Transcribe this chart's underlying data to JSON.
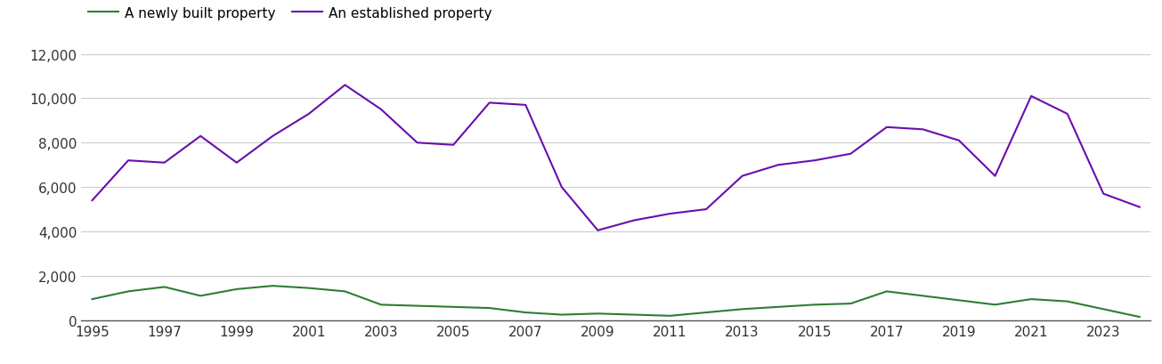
{
  "years": [
    1995,
    1996,
    1997,
    1998,
    1999,
    2000,
    2001,
    2002,
    2003,
    2004,
    2005,
    2006,
    2007,
    2008,
    2009,
    2010,
    2011,
    2012,
    2013,
    2014,
    2015,
    2016,
    2017,
    2018,
    2019,
    2020,
    2021,
    2022,
    2023,
    2024
  ],
  "newly_built": [
    950,
    1300,
    1500,
    1100,
    1400,
    1550,
    1450,
    1300,
    700,
    650,
    600,
    550,
    350,
    250,
    300,
    250,
    200,
    350,
    500,
    600,
    700,
    750,
    1300,
    1100,
    900,
    700,
    950,
    850,
    500,
    150
  ],
  "established": [
    5400,
    7200,
    7100,
    8300,
    7100,
    8300,
    9300,
    10600,
    9500,
    8000,
    7900,
    9800,
    9700,
    6000,
    4050,
    4500,
    4800,
    5000,
    6500,
    7000,
    7200,
    7500,
    8700,
    8600,
    8100,
    6500,
    10100,
    9300,
    5700,
    5100
  ],
  "newly_built_color": "#2e7d32",
  "established_color": "#6a0dad",
  "legend_labels": [
    "A newly built property",
    "An established property"
  ],
  "ylim": [
    0,
    12000
  ],
  "yticks": [
    0,
    2000,
    4000,
    6000,
    8000,
    10000,
    12000
  ],
  "background_color": "#ffffff",
  "grid_color": "#cccccc",
  "line_width": 1.5,
  "tick_fontsize": 11,
  "legend_fontsize": 11
}
